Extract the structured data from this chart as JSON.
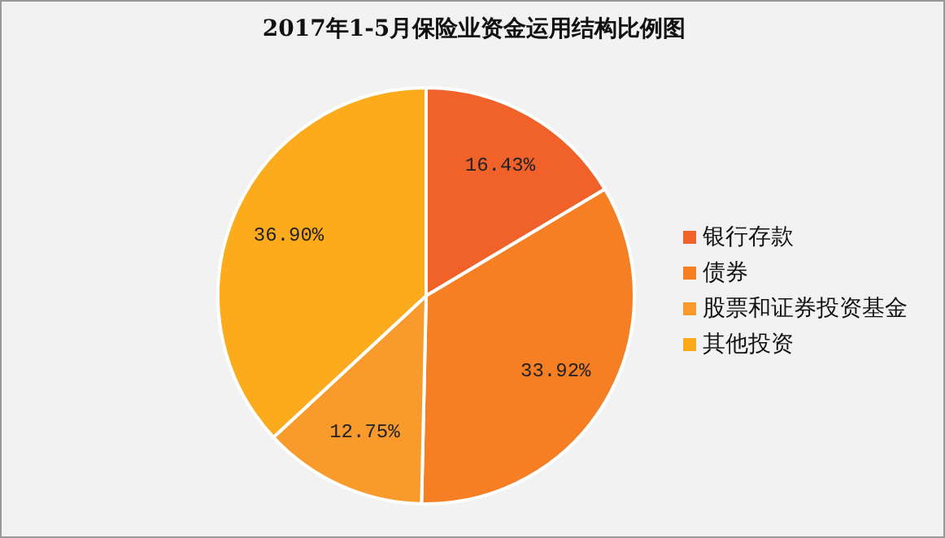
{
  "chart_data": {
    "type": "pie",
    "title": "2017年1-5月保险业资金运用结构比例图",
    "categories": [
      "银行存款",
      "债券",
      "股票和证券投资基金",
      "其他投资"
    ],
    "values": [
      16.43,
      33.92,
      12.75,
      36.9
    ],
    "value_labels": [
      "16.43%",
      "33.92%",
      "12.75%",
      "36.90%"
    ],
    "colors": [
      "#f0622a",
      "#f57f22",
      "#f89b2c",
      "#fbab1c"
    ],
    "legend": "right"
  }
}
